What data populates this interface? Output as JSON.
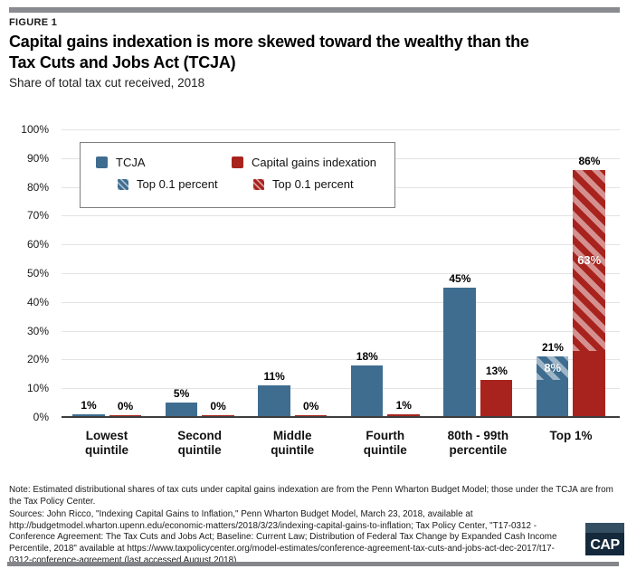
{
  "page": {
    "figure_label": "FIGURE 1",
    "title_lines": [
      "Capital gains indexation is more skewed toward the wealthy than the",
      "Tax Cuts and Jobs Act (TCJA)"
    ],
    "subtitle": "Share of total tax cut received, 2018"
  },
  "legend": {
    "items": [
      {
        "label": "TCJA",
        "color": "#3e6d90",
        "hatched": false
      },
      {
        "label": "Capital gains indexation",
        "color": "#a8231e",
        "hatched": false
      },
      {
        "label": "Top 0.1 percent",
        "color": "#3e6d90",
        "hatched": true
      },
      {
        "label": "Top 0.1 percent",
        "color": "#a8231e",
        "hatched": true
      }
    ]
  },
  "chart_data": {
    "type": "bar",
    "title": "Capital gains indexation is more skewed toward the wealthy than the Tax Cuts and Jobs Act (TCJA)",
    "subtitle": "Share of total tax cut received, 2018",
    "categories": [
      "Lowest quintile",
      "Second quintile",
      "Middle quintile",
      "Fourth quintile",
      "80th - 99th percentile",
      "Top 1%"
    ],
    "category_label_lines": [
      [
        "Lowest",
        "quintile"
      ],
      [
        "Second",
        "quintile"
      ],
      [
        "Middle",
        "quintile"
      ],
      [
        "Fourth",
        "quintile"
      ],
      [
        "80th - 99th",
        "percentile"
      ],
      [
        "Top 1%"
      ]
    ],
    "series": [
      {
        "name": "TCJA",
        "color": "#3e6d90",
        "values": [
          1,
          5,
          11,
          18,
          45,
          21
        ],
        "top_0_1_percent_portion": [
          null,
          null,
          null,
          null,
          null,
          8
        ]
      },
      {
        "name": "Capital gains indexation",
        "color": "#a8231e",
        "values": [
          0,
          0,
          0,
          1,
          13,
          86
        ],
        "top_0_1_percent_portion": [
          null,
          null,
          null,
          null,
          null,
          63
        ]
      }
    ],
    "value_labels": [
      [
        "1%",
        "5%",
        "11%",
        "18%",
        "45%",
        "21%"
      ],
      [
        "0%",
        "0%",
        "0%",
        "1%",
        "13%",
        "86%"
      ]
    ],
    "inside_labels": [
      "8%",
      "63%"
    ],
    "ylim": [
      0,
      100
    ],
    "ytick_step": 10,
    "yticks": [
      "0%",
      "10%",
      "20%",
      "30%",
      "40%",
      "50%",
      "60%",
      "70%",
      "80%",
      "90%",
      "100%"
    ],
    "grid": "horizontal",
    "legend_position": "top-left-inside",
    "value_label_suffix": "%"
  },
  "colors": {
    "tcja_blue": "#3e6d90",
    "indexation_red": "#a8231e",
    "gridline": "#e3e3e3",
    "baseline": "#3d3d3d",
    "divider_gray": "#8a8b90",
    "logo_navy": "#15293c"
  },
  "footer": {
    "note": "Note: Estimated distributional shares of tax cuts under capital gains indexation are from the Penn Wharton Budget Model; those under the TCJA are from the Tax Policy Center.",
    "sources": "Sources: John Ricco, \"Indexing Capital Gains to Inflation,\" Penn Wharton Budget Model, March 23, 2018, available at http://budgetmodel.wharton.upenn.edu/economic-matters/2018/3/23/indexing-capital-gains-to-inflation; Tax Policy Center, \"T17-0312 - Conference Agreement: The Tax Cuts and Jobs Act; Baseline: Current Law; Distribution of Federal Tax Change by Expanded Cash Income Percentile, 2018\" available at https://www.taxpolicycenter.org/model-estimates/conference-agreement-tax-cuts-and-jobs-act-dec-2017/t17-0312-conference-agreement (last accessed August 2018)",
    "logo_text": "CAP"
  }
}
